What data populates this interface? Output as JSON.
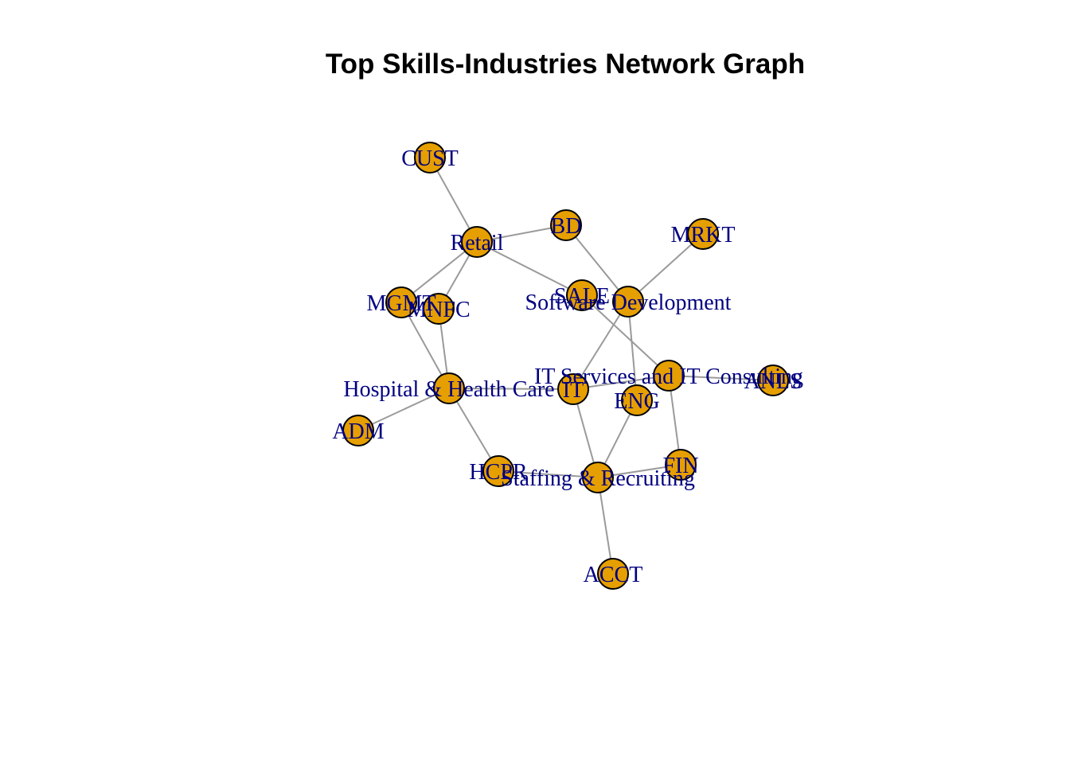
{
  "title": "Top Skills-Industries Network Graph",
  "colors": {
    "node_fill": "#e69f00",
    "node_stroke": "#000000",
    "edge": "#9a9a9a",
    "label": "#000080"
  },
  "nodes": [
    {
      "id": "CUST",
      "label": "CUST"
    },
    {
      "id": "Retail",
      "label": "Retail"
    },
    {
      "id": "BD",
      "label": "BD"
    },
    {
      "id": "MRKT",
      "label": "MRKT"
    },
    {
      "id": "MGMT",
      "label": "MGMT"
    },
    {
      "id": "MNFC",
      "label": "MNFC"
    },
    {
      "id": "SALE",
      "label": "SALE"
    },
    {
      "id": "SoftwareDev",
      "label": "Software Development"
    },
    {
      "id": "ITServices",
      "label": "IT Services and IT Consulting"
    },
    {
      "id": "ANLS",
      "label": "ANLS"
    },
    {
      "id": "Hospital",
      "label": "Hospital & Health Care"
    },
    {
      "id": "IT",
      "label": "IT"
    },
    {
      "id": "ENG",
      "label": "ENG"
    },
    {
      "id": "ADM",
      "label": "ADM"
    },
    {
      "id": "HCPR",
      "label": "HCPR"
    },
    {
      "id": "Staffing",
      "label": "Staffing & Recruiting"
    },
    {
      "id": "FIN",
      "label": "FIN"
    },
    {
      "id": "ACCT",
      "label": "ACCT"
    }
  ],
  "edges": [
    [
      "CUST",
      "Retail"
    ],
    [
      "Retail",
      "BD"
    ],
    [
      "Retail",
      "MGMT"
    ],
    [
      "Retail",
      "MNFC"
    ],
    [
      "Retail",
      "SALE"
    ],
    [
      "BD",
      "SoftwareDev"
    ],
    [
      "MRKT",
      "SoftwareDev"
    ],
    [
      "SALE",
      "ITServices"
    ],
    [
      "SoftwareDev",
      "IT"
    ],
    [
      "SoftwareDev",
      "ENG"
    ],
    [
      "MGMT",
      "Hospital"
    ],
    [
      "MNFC",
      "Hospital"
    ],
    [
      "Hospital",
      "ADM"
    ],
    [
      "Hospital",
      "HCPR"
    ],
    [
      "Hospital",
      "IT"
    ],
    [
      "IT",
      "ITServices"
    ],
    [
      "ITServices",
      "ANLS"
    ],
    [
      "ITServices",
      "FIN"
    ],
    [
      "IT",
      "Staffing"
    ],
    [
      "ENG",
      "Staffing"
    ],
    [
      "HCPR",
      "Staffing"
    ],
    [
      "FIN",
      "Staffing"
    ],
    [
      "Staffing",
      "ACCT"
    ]
  ]
}
